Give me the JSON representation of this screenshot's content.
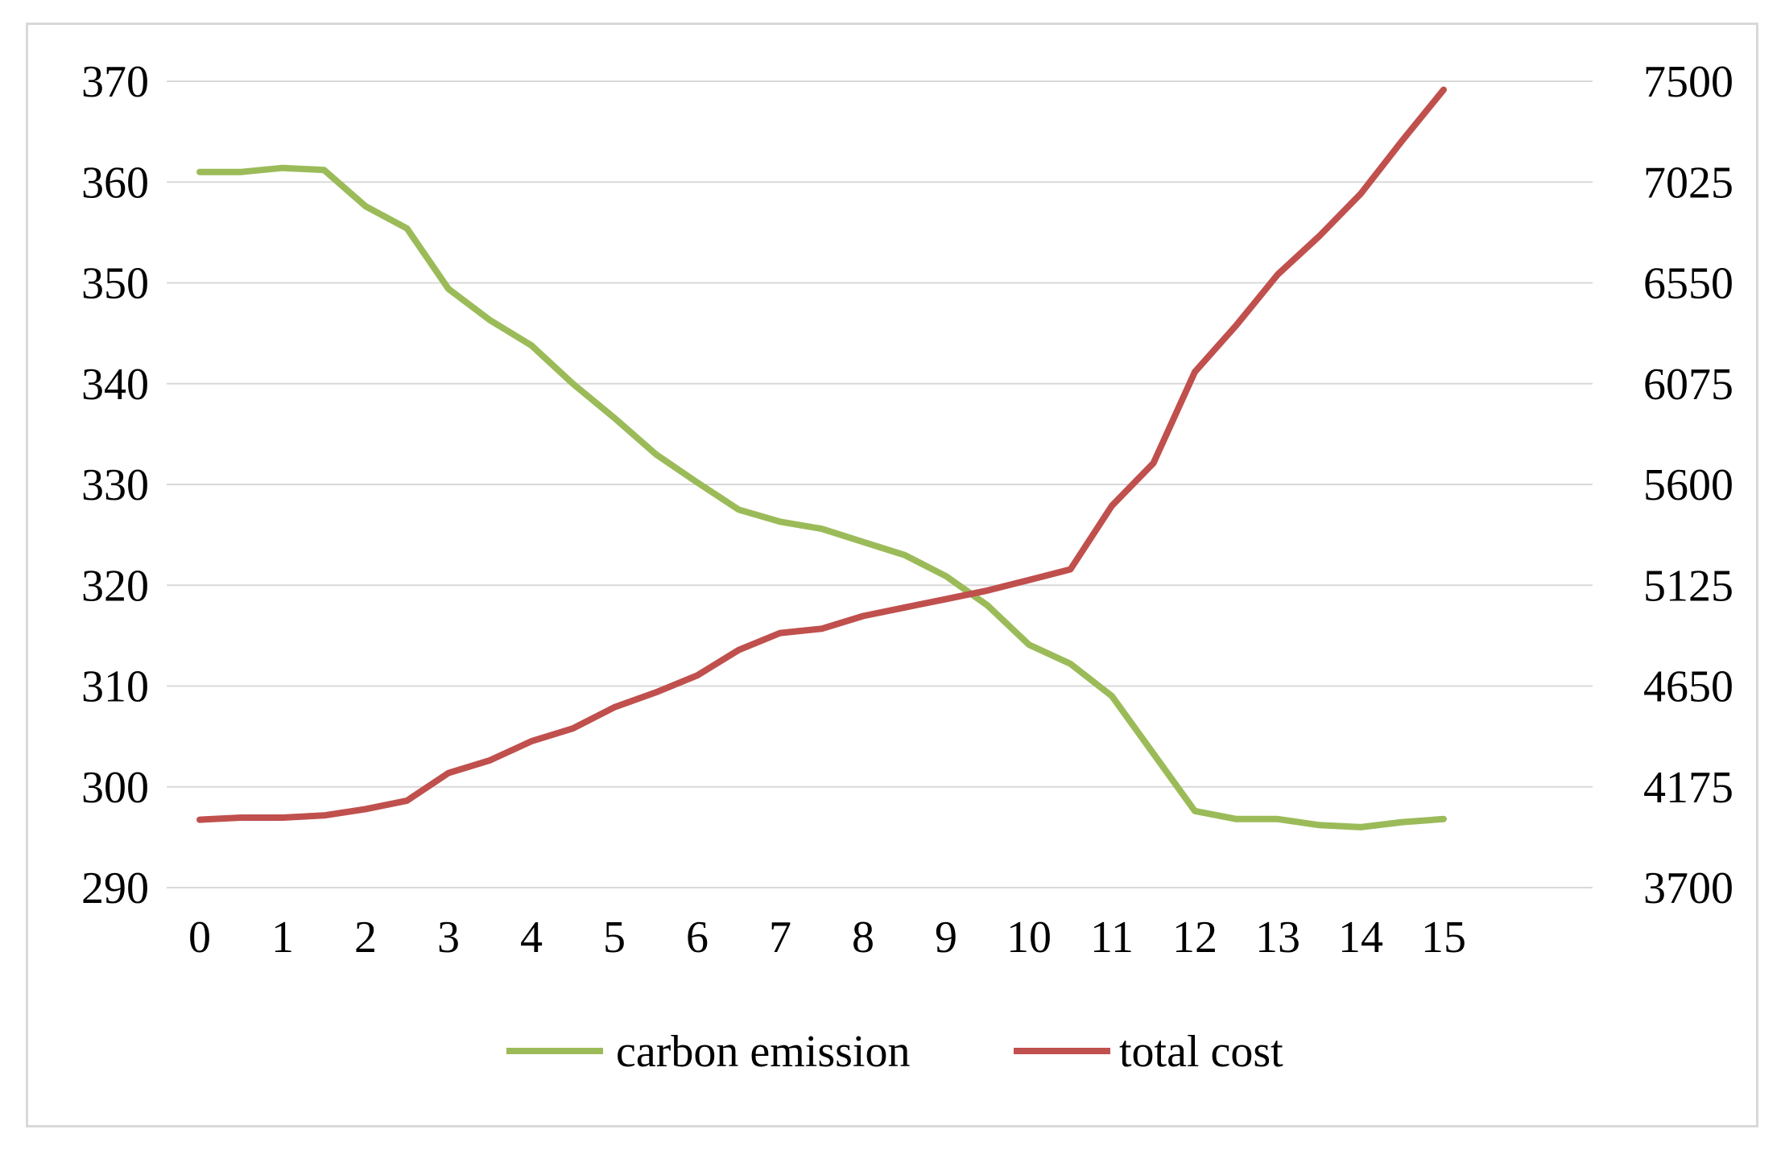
{
  "chart_data": {
    "type": "line",
    "title": "",
    "xlabel": "",
    "ylabel": "",
    "y2label": "",
    "grid": true,
    "legend_position": "bottom",
    "x_ticks": [
      "0",
      "1",
      "2",
      "3",
      "4",
      "5",
      "6",
      "7",
      "8",
      "9",
      "10",
      "11",
      "12",
      "13",
      "14",
      "15"
    ],
    "x": [
      0,
      0.5,
      1,
      1.5,
      2,
      2.5,
      3,
      3.5,
      4,
      4.5,
      5,
      5.5,
      6,
      6.5,
      7,
      7.5,
      8,
      8.5,
      9,
      9.5,
      10,
      10.5,
      11,
      11.5,
      12,
      12.5,
      13,
      13.5,
      14,
      14.5,
      15
    ],
    "xlim": [
      0,
      15
    ],
    "y_left": {
      "ylim": [
        290,
        370
      ],
      "ticks": [
        "290",
        "300",
        "310",
        "320",
        "330",
        "340",
        "350",
        "360",
        "370"
      ]
    },
    "y_right": {
      "ylim": [
        3700,
        7500
      ],
      "ticks": [
        "3700",
        "4175",
        "4650",
        "5125",
        "5600",
        "6075",
        "6550",
        "7025",
        "7500"
      ]
    },
    "series": [
      {
        "name": "carbon emission",
        "axis": "left",
        "color": "#9bbb59",
        "values": [
          361.0,
          361.0,
          361.4,
          361.2,
          357.6,
          355.4,
          349.4,
          346.3,
          343.8,
          340.0,
          336.6,
          333.0,
          330.2,
          327.5,
          326.3,
          325.6,
          324.3,
          323.0,
          320.9,
          318.0,
          314.1,
          312.2,
          309.0,
          303.3,
          297.6,
          296.8,
          296.8,
          296.2,
          296.0,
          296.5,
          296.8
        ]
      },
      {
        "name": "total cost",
        "axis": "right",
        "color": "#c0504d",
        "values": [
          4020,
          4030,
          4030,
          4040,
          4070,
          4110,
          4240,
          4300,
          4390,
          4450,
          4550,
          4620,
          4700,
          4820,
          4900,
          4920,
          4980,
          5020,
          5060,
          5100,
          5150,
          5200,
          5500,
          5700,
          6130,
          6350,
          6590,
          6770,
          6970,
          7220,
          7460
        ]
      }
    ]
  }
}
